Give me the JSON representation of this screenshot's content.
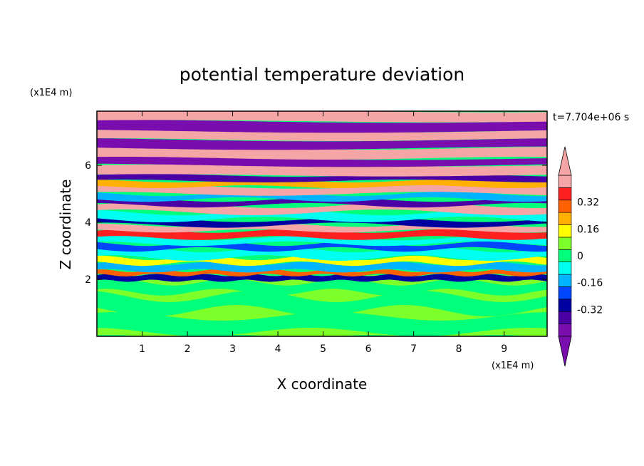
{
  "chart_data": {
    "type": "heatmap",
    "title": "potential temperature deviation",
    "xlabel": "X coordinate",
    "ylabel": "Z coordinate",
    "x_unit": "(x1E4 m)",
    "y_unit": "(x1E4 m)",
    "time_label": "t=7.704e+06 s",
    "xlim": [
      0,
      9.95
    ],
    "ylim": [
      0,
      7.9
    ],
    "x_ticks": [
      1,
      2,
      3,
      4,
      5,
      6,
      7,
      8,
      9
    ],
    "y_ticks": [
      2,
      4,
      6
    ],
    "colorbar": {
      "levels": [
        -0.48,
        -0.4,
        -0.32,
        -0.24,
        -0.16,
        -0.08,
        0,
        0.08,
        0.16,
        0.24,
        0.32,
        0.4,
        0.48
      ],
      "colors": [
        "#7a0dae",
        "#4a00a5",
        "#0000a0",
        "#0046ff",
        "#00b4ff",
        "#00fff0",
        "#00ff7a",
        "#7dff2a",
        "#ffff00",
        "#ffb000",
        "#ff6000",
        "#ff2020",
        "#f5a5a5"
      ],
      "labels": [
        "0.32",
        "0.16",
        "0",
        "-0.16",
        "-0.32"
      ],
      "label_values": [
        0.32,
        0.16,
        0,
        -0.16,
        -0.32
      ],
      "extend": "both"
    },
    "grid": false,
    "legend": "right"
  }
}
